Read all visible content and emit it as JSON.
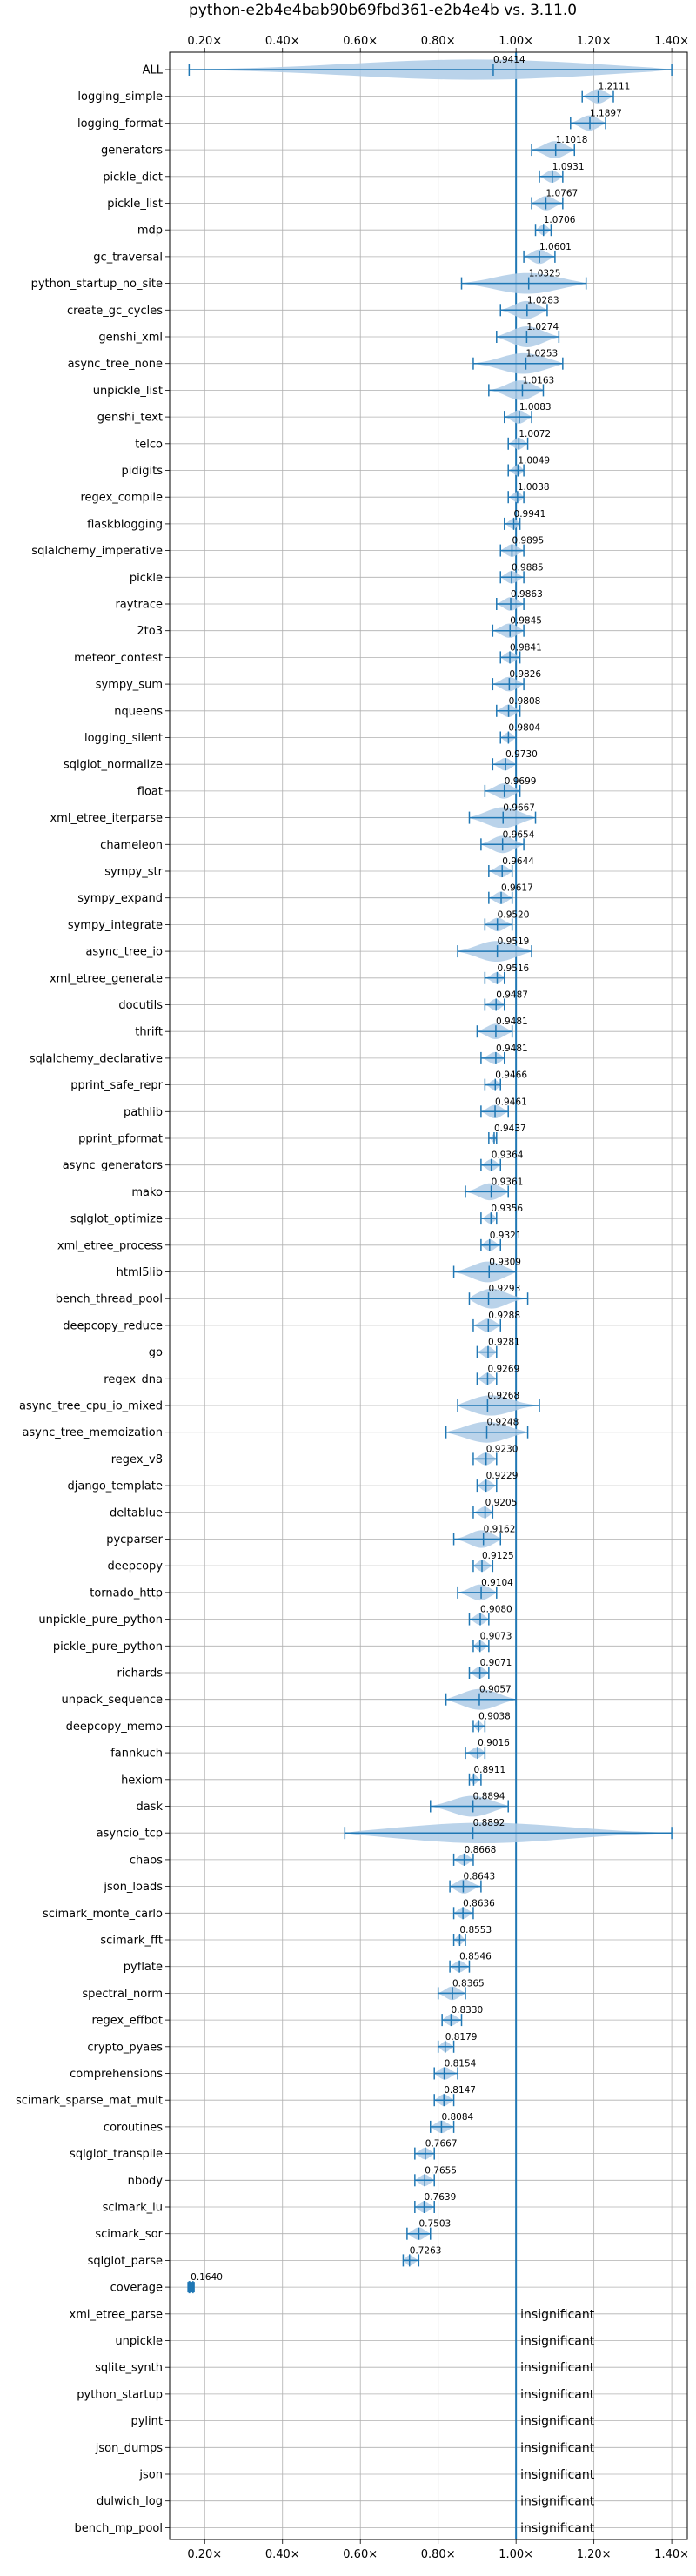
{
  "chart_data": {
    "type": "violin",
    "title": "python-e2b4e4bab90b69fbd361-e2b4e4b vs. 3.11.0",
    "xlim": [
      0.11,
      1.44
    ],
    "x_ticks": [
      0.2,
      0.4,
      0.6,
      0.8,
      1.0,
      1.2,
      1.4
    ],
    "x_tick_labels": [
      "0.20×",
      "0.40×",
      "0.60×",
      "0.80×",
      "1.00×",
      "1.20×",
      "1.40×"
    ],
    "reference_line": 1.0,
    "grid": true,
    "colors": {
      "violin": "#aecbe6",
      "line": "#1f77b4",
      "reference": "#1f77b4"
    },
    "categories": [
      "ALL",
      "logging_simple",
      "logging_format",
      "generators",
      "pickle_dict",
      "pickle_list",
      "mdp",
      "gc_traversal",
      "python_startup_no_site",
      "create_gc_cycles",
      "genshi_xml",
      "async_tree_none",
      "unpickle_list",
      "genshi_text",
      "telco",
      "pidigits",
      "regex_compile",
      "flaskblogging",
      "sqlalchemy_imperative",
      "pickle",
      "raytrace",
      "2to3",
      "meteor_contest",
      "sympy_sum",
      "nqueens",
      "logging_silent",
      "sqlglot_normalize",
      "float",
      "xml_etree_iterparse",
      "chameleon",
      "sympy_str",
      "sympy_expand",
      "sympy_integrate",
      "async_tree_io",
      "xml_etree_generate",
      "docutils",
      "thrift",
      "sqlalchemy_declarative",
      "pprint_safe_repr",
      "pathlib",
      "pprint_pformat",
      "async_generators",
      "mako",
      "sqlglot_optimize",
      "xml_etree_process",
      "html5lib",
      "bench_thread_pool",
      "deepcopy_reduce",
      "go",
      "regex_dna",
      "async_tree_cpu_io_mixed",
      "async_tree_memoization",
      "regex_v8",
      "django_template",
      "deltablue",
      "pycparser",
      "deepcopy",
      "tornado_http",
      "unpickle_pure_python",
      "pickle_pure_python",
      "richards",
      "unpack_sequence",
      "deepcopy_memo",
      "fannkuch",
      "hexiom",
      "dask",
      "asyncio_tcp",
      "chaos",
      "json_loads",
      "scimark_monte_carlo",
      "scimark_fft",
      "pyflate",
      "spectral_norm",
      "regex_effbot",
      "crypto_pyaes",
      "comprehensions",
      "scimark_sparse_mat_mult",
      "coroutines",
      "sqlglot_transpile",
      "nbody",
      "scimark_lu",
      "scimark_sor",
      "sqlglot_parse",
      "coverage",
      "xml_etree_parse",
      "unpickle",
      "sqlite_synth",
      "python_startup",
      "pylint",
      "json_dumps",
      "json",
      "dulwich_log",
      "bench_mp_pool"
    ],
    "values": [
      0.9414,
      1.2111,
      1.1897,
      1.1018,
      1.0931,
      1.0767,
      1.0706,
      1.0601,
      1.0325,
      1.0283,
      1.0274,
      1.0253,
      1.0163,
      1.0083,
      1.0072,
      1.0049,
      1.0038,
      0.9941,
      0.9895,
      0.9885,
      0.9863,
      0.9845,
      0.9841,
      0.9826,
      0.9808,
      0.9804,
      0.973,
      0.9699,
      0.9667,
      0.9654,
      0.9644,
      0.9617,
      0.952,
      0.9519,
      0.9516,
      0.9487,
      0.9481,
      0.9481,
      0.9466,
      0.9461,
      0.9437,
      0.9364,
      0.9361,
      0.9356,
      0.9321,
      0.9309,
      0.9293,
      0.9288,
      0.9281,
      0.9269,
      0.9268,
      0.9248,
      0.923,
      0.9229,
      0.9205,
      0.9162,
      0.9125,
      0.9104,
      0.908,
      0.9073,
      0.9071,
      0.9057,
      0.9038,
      0.9016,
      0.8911,
      0.8894,
      0.8892,
      0.8668,
      0.8643,
      0.8636,
      0.8553,
      0.8546,
      0.8365,
      0.833,
      0.8179,
      0.8154,
      0.8147,
      0.8084,
      0.7667,
      0.7655,
      0.7639,
      0.7503,
      0.7263,
      0.164,
      null,
      null,
      null,
      null,
      null,
      null,
      null,
      null,
      null
    ],
    "value_labels": [
      "0.9414",
      "1.2111",
      "1.1897",
      "1.1018",
      "1.0931",
      "1.0767",
      "1.0706",
      "1.0601",
      "1.0325",
      "1.0283",
      "1.0274",
      "1.0253",
      "1.0163",
      "1.0083",
      "1.0072",
      "1.0049",
      "1.0038",
      "0.9941",
      "0.9895",
      "0.9885",
      "0.9863",
      "0.9845",
      "0.9841",
      "0.9826",
      "0.9808",
      "0.9804",
      "0.9730",
      "0.9699",
      "0.9667",
      "0.9654",
      "0.9644",
      "0.9617",
      "0.9520",
      "0.9519",
      "0.9516",
      "0.9487",
      "0.9481",
      "0.9481",
      "0.9466",
      "0.9461",
      "0.9437",
      "0.9364",
      "0.9361",
      "0.9356",
      "0.9321",
      "0.9309",
      "0.9293",
      "0.9288",
      "0.9281",
      "0.9269",
      "0.9268",
      "0.9248",
      "0.9230",
      "0.9229",
      "0.9205",
      "0.9162",
      "0.9125",
      "0.9104",
      "0.9080",
      "0.9073",
      "0.9071",
      "0.9057",
      "0.9038",
      "0.9016",
      "0.8911",
      "0.8894",
      "0.8892",
      "0.8668",
      "0.8643",
      "0.8636",
      "0.8553",
      "0.8546",
      "0.8365",
      "0.8330",
      "0.8179",
      "0.8154",
      "0.8147",
      "0.8084",
      "0.7667",
      "0.7655",
      "0.7639",
      "0.7503",
      "0.7263",
      "0.1640",
      "insignificant",
      "insignificant",
      "insignificant",
      "insignificant",
      "insignificant",
      "insignificant",
      "insignificant",
      "insignificant",
      "insignificant"
    ],
    "ranges": [
      [
        0.16,
        1.4
      ],
      [
        1.17,
        1.25
      ],
      [
        1.14,
        1.23
      ],
      [
        1.04,
        1.15
      ],
      [
        1.06,
        1.12
      ],
      [
        1.04,
        1.12
      ],
      [
        1.05,
        1.09
      ],
      [
        1.02,
        1.1
      ],
      [
        0.86,
        1.18
      ],
      [
        0.96,
        1.08
      ],
      [
        0.95,
        1.11
      ],
      [
        0.89,
        1.12
      ],
      [
        0.93,
        1.07
      ],
      [
        0.97,
        1.04
      ],
      [
        0.98,
        1.03
      ],
      [
        0.98,
        1.02
      ],
      [
        0.98,
        1.02
      ],
      [
        0.97,
        1.01
      ],
      [
        0.96,
        1.02
      ],
      [
        0.96,
        1.02
      ],
      [
        0.95,
        1.02
      ],
      [
        0.94,
        1.02
      ],
      [
        0.96,
        1.01
      ],
      [
        0.94,
        1.02
      ],
      [
        0.95,
        1.01
      ],
      [
        0.96,
        1.0
      ],
      [
        0.94,
        1.0
      ],
      [
        0.92,
        1.01
      ],
      [
        0.88,
        1.05
      ],
      [
        0.91,
        1.02
      ],
      [
        0.93,
        0.99
      ],
      [
        0.93,
        0.99
      ],
      [
        0.92,
        0.99
      ],
      [
        0.85,
        1.04
      ],
      [
        0.92,
        0.97
      ],
      [
        0.92,
        0.97
      ],
      [
        0.9,
        0.99
      ],
      [
        0.91,
        0.97
      ],
      [
        0.92,
        0.96
      ],
      [
        0.91,
        0.98
      ],
      [
        0.93,
        0.95
      ],
      [
        0.91,
        0.96
      ],
      [
        0.87,
        0.98
      ],
      [
        0.91,
        0.95
      ],
      [
        0.91,
        0.96
      ],
      [
        0.84,
        1.0
      ],
      [
        0.88,
        1.03
      ],
      [
        0.89,
        0.96
      ],
      [
        0.9,
        0.95
      ],
      [
        0.9,
        0.95
      ],
      [
        0.85,
        1.06
      ],
      [
        0.82,
        1.03
      ],
      [
        0.89,
        0.95
      ],
      [
        0.9,
        0.95
      ],
      [
        0.89,
        0.94
      ],
      [
        0.84,
        0.96
      ],
      [
        0.89,
        0.94
      ],
      [
        0.85,
        0.95
      ],
      [
        0.88,
        0.93
      ],
      [
        0.89,
        0.93
      ],
      [
        0.88,
        0.93
      ],
      [
        0.82,
        1.0
      ],
      [
        0.89,
        0.92
      ],
      [
        0.87,
        0.92
      ],
      [
        0.88,
        0.91
      ],
      [
        0.78,
        0.98
      ],
      [
        0.56,
        1.4
      ],
      [
        0.84,
        0.89
      ],
      [
        0.83,
        0.91
      ],
      [
        0.84,
        0.89
      ],
      [
        0.84,
        0.87
      ],
      [
        0.83,
        0.88
      ],
      [
        0.8,
        0.87
      ],
      [
        0.81,
        0.86
      ],
      [
        0.8,
        0.84
      ],
      [
        0.79,
        0.85
      ],
      [
        0.79,
        0.84
      ],
      [
        0.78,
        0.84
      ],
      [
        0.74,
        0.79
      ],
      [
        0.74,
        0.79
      ],
      [
        0.74,
        0.79
      ],
      [
        0.72,
        0.78
      ],
      [
        0.71,
        0.75
      ],
      [
        0.16,
        0.17
      ],
      null,
      null,
      null,
      null,
      null,
      null,
      null,
      null,
      null
    ]
  }
}
